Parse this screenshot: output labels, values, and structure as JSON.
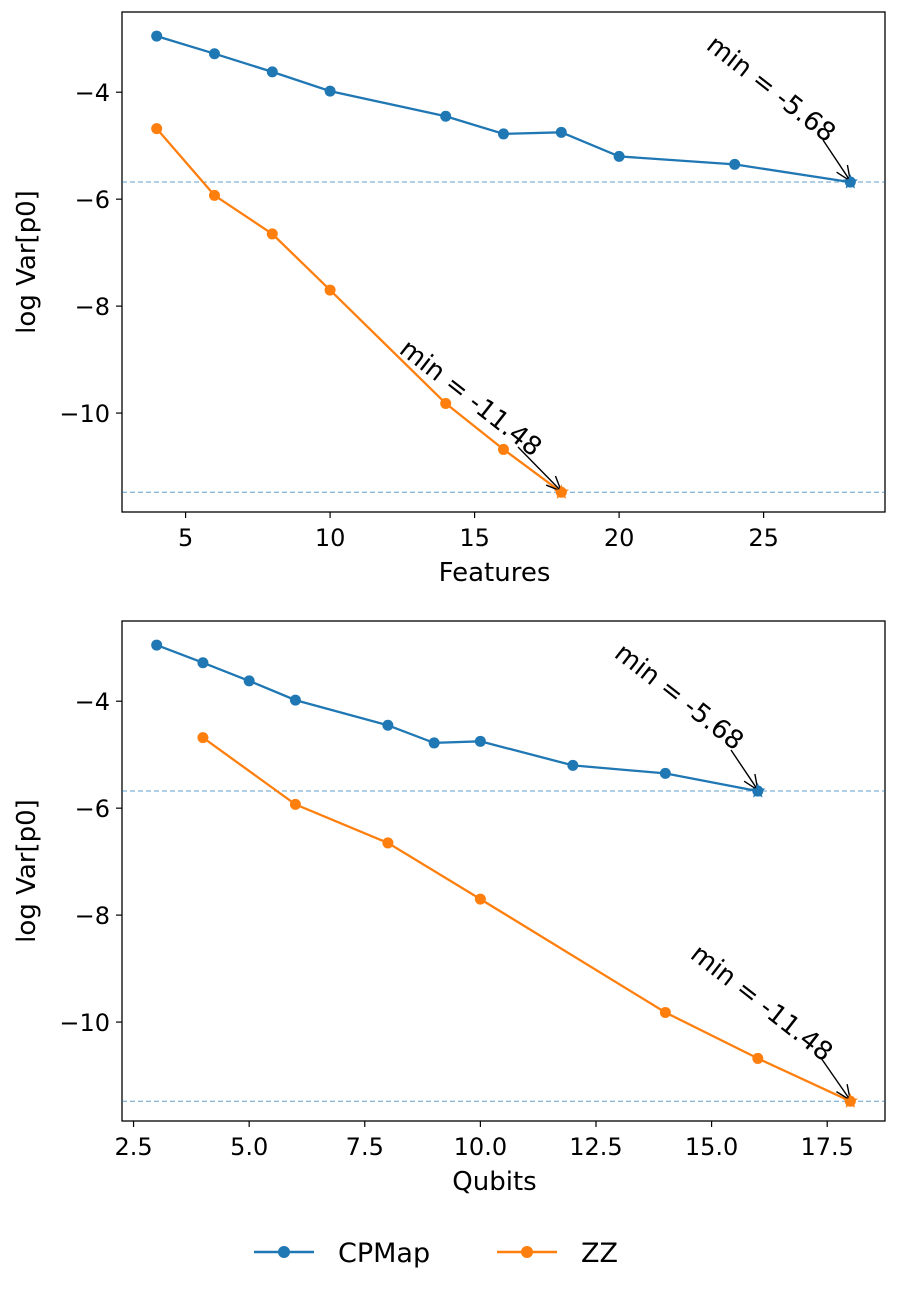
{
  "chart_data": [
    {
      "type": "line",
      "xlabel": "Features",
      "ylabel": "log Var[p0]",
      "xlim": [
        2.8,
        29.2
      ],
      "ylim": [
        -11.85,
        -2.5
      ],
      "xticks": [
        5,
        10,
        15,
        20,
        25
      ],
      "xtick_labels": [
        "5",
        "10",
        "15",
        "20",
        "25"
      ],
      "yticks": [
        -4,
        -6,
        -8,
        -10
      ],
      "ytick_labels": [
        "−4",
        "−6",
        "−8",
        "−10"
      ],
      "series": [
        {
          "name": "CPMap",
          "color": "#1f77b4",
          "x": [
            4,
            6,
            8,
            10,
            14,
            16,
            18,
            20,
            24,
            28
          ],
          "y": [
            -2.95,
            -3.28,
            -3.62,
            -3.98,
            -4.45,
            -4.78,
            -4.75,
            -5.2,
            -5.35,
            -5.68
          ]
        },
        {
          "name": "ZZ",
          "color": "#ff7f0e",
          "x": [
            4,
            6,
            8,
            10,
            14,
            16,
            18
          ],
          "y": [
            -4.68,
            -5.93,
            -6.65,
            -7.7,
            -9.82,
            -10.68,
            -11.48
          ]
        }
      ],
      "hlines": [
        -5.68,
        -11.48
      ],
      "annotations": [
        {
          "text": "min = -5.68",
          "series": "CPMap",
          "x": 28,
          "y": -5.68
        },
        {
          "text": "min = -11.48",
          "series": "ZZ",
          "x": 18,
          "y": -11.48
        }
      ]
    },
    {
      "type": "line",
      "xlabel": "Qubits",
      "ylabel": "log Var[p0]",
      "xlim": [
        2.25,
        18.75
      ],
      "ylim": [
        -11.85,
        -2.5
      ],
      "xticks": [
        2.5,
        5.0,
        7.5,
        10.0,
        12.5,
        15.0,
        17.5
      ],
      "xtick_labels": [
        "2.5",
        "5.0",
        "7.5",
        "10.0",
        "12.5",
        "15.0",
        "17.5"
      ],
      "yticks": [
        -4,
        -6,
        -8,
        -10
      ],
      "ytick_labels": [
        "−4",
        "−6",
        "−8",
        "−10"
      ],
      "series": [
        {
          "name": "CPMap",
          "color": "#1f77b4",
          "x": [
            3,
            4,
            5,
            6,
            8,
            9,
            10,
            12,
            14,
            16
          ],
          "y": [
            -2.95,
            -3.28,
            -3.62,
            -3.98,
            -4.45,
            -4.78,
            -4.75,
            -5.2,
            -5.35,
            -5.68
          ]
        },
        {
          "name": "ZZ",
          "color": "#ff7f0e",
          "x": [
            4,
            6,
            8,
            10,
            14,
            16,
            18
          ],
          "y": [
            -4.68,
            -5.93,
            -6.65,
            -7.7,
            -9.82,
            -10.68,
            -11.48
          ]
        }
      ],
      "hlines": [
        -5.68,
        -11.48
      ],
      "annotations": [
        {
          "text": "min = -5.68",
          "series": "CPMap",
          "x": 16,
          "y": -5.68
        },
        {
          "text": "min = -11.48",
          "series": "ZZ",
          "x": 18,
          "y": -11.48
        }
      ]
    }
  ],
  "legend": {
    "placement": "bottom-center",
    "entries": [
      {
        "label": "CPMap",
        "color": "#1f77b4"
      },
      {
        "label": "ZZ",
        "color": "#ff7f0e"
      }
    ]
  }
}
